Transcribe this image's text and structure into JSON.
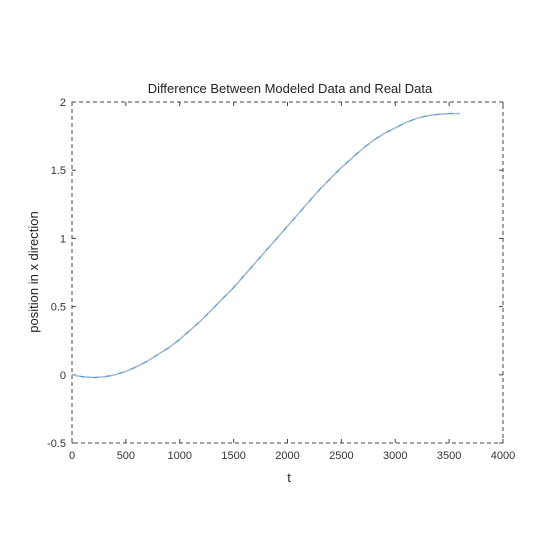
{
  "chart_data": {
    "type": "line",
    "title": "Difference Between Modeled Data and Real Data",
    "xlabel": "t",
    "ylabel": "position in x direction",
    "xlim": [
      0,
      4000
    ],
    "ylim": [
      -0.5,
      2
    ],
    "xticks": [
      0,
      500,
      1000,
      1500,
      2000,
      2500,
      3000,
      3500,
      4000
    ],
    "yticks": [
      -0.5,
      0,
      0.5,
      1,
      1.5,
      2
    ],
    "xtick_labels": [
      "0",
      "500",
      "1000",
      "1500",
      "2000",
      "2500",
      "3000",
      "3500",
      "4000"
    ],
    "ytick_labels": [
      "-0.5",
      "0",
      "0.5",
      "1",
      "1.5",
      "2"
    ],
    "grid": false,
    "box": "dashed",
    "series": [
      {
        "style": "solid",
        "color": "#5b9bd5",
        "x": [
          0,
          100,
          200,
          300,
          400,
          500,
          600,
          700,
          800,
          900,
          1000,
          1100,
          1200,
          1300,
          1400,
          1500,
          1600,
          1700,
          1800,
          1900,
          2000,
          2100,
          2200,
          2300,
          2400,
          2500,
          2600,
          2700,
          2800,
          2900,
          3000,
          3100,
          3200,
          3300,
          3400,
          3500,
          3600
        ],
        "y": [
          0.0,
          -0.015,
          -0.02,
          -0.015,
          0.0,
          0.025,
          0.06,
          0.1,
          0.15,
          0.2,
          0.26,
          0.33,
          0.4,
          0.48,
          0.56,
          0.64,
          0.73,
          0.82,
          0.91,
          1.0,
          1.09,
          1.18,
          1.27,
          1.36,
          1.44,
          1.52,
          1.59,
          1.66,
          1.72,
          1.77,
          1.81,
          1.85,
          1.88,
          1.9,
          1.91,
          1.915,
          1.915
        ]
      },
      {
        "style": "dashed",
        "color": "#bdbdbd",
        "x": [
          0,
          100,
          200,
          300,
          400,
          500,
          600,
          700,
          800,
          900,
          1000,
          1100,
          1200,
          1300,
          1400,
          1500,
          1600,
          1700,
          1800,
          1900,
          2000,
          2100,
          2200,
          2300,
          2400,
          2500,
          2600,
          2700,
          2800,
          2900,
          3000,
          3100,
          3200,
          3300,
          3400,
          3500,
          3600
        ],
        "y": [
          0.0,
          -0.015,
          -0.02,
          -0.015,
          0.0,
          0.025,
          0.06,
          0.1,
          0.15,
          0.2,
          0.26,
          0.33,
          0.4,
          0.48,
          0.56,
          0.64,
          0.73,
          0.82,
          0.91,
          1.0,
          1.09,
          1.18,
          1.27,
          1.36,
          1.44,
          1.52,
          1.59,
          1.66,
          1.72,
          1.77,
          1.81,
          1.85,
          1.88,
          1.9,
          1.91,
          1.915,
          1.915
        ]
      }
    ]
  }
}
